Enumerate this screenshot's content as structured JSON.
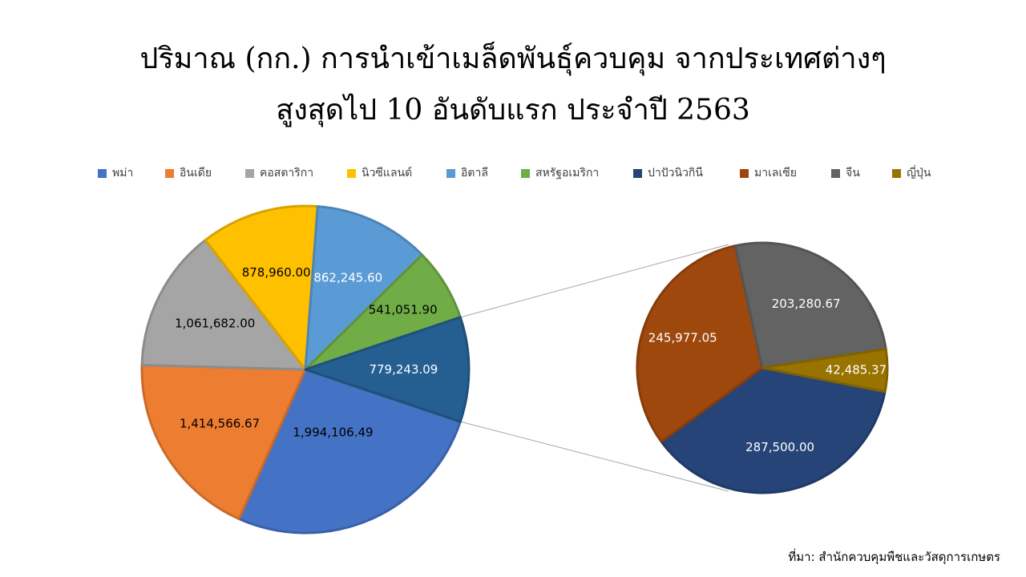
{
  "title_line1": "ปริมาณ (กก.) การนำเข้าเมล็ดพันธุ์ควบคุม จากประเทศต่างๆ",
  "title_line2": "สูงสุดไป 10 อันดับแรก ประจำปี 2563",
  "source": "ที่มา: สำนักควบคุมพืชและวัสดุการเกษตร",
  "chart_data": {
    "type": "pie",
    "subtype": "pie-of-pie",
    "title": "ปริมาณ (กก.) การนำเข้าเมล็ดพันธุ์ควบคุม จากประเทศต่างๆ สูงสุดไป 10 อันดับแรก ประจำปี 2563",
    "legend_position": "top",
    "categories": [
      "พม่า",
      "อินเดีย",
      "คอสตาริกา",
      "นิวซีแลนด์",
      "อิตาลี",
      "สหรัฐอเมริกา",
      "ปาปัวนิวกินี",
      "มาเลเซีย",
      "จีน",
      "ญี่ปุ่น"
    ],
    "values": [
      1994106.49,
      1414566.67,
      1061682.0,
      878960.0,
      862245.6,
      541051.9,
      287500.0,
      245977.05,
      203280.67,
      42485.37
    ],
    "labels": [
      "1,994,106.49",
      "1,414,566.67",
      "1,061,682.00",
      "878,960.00",
      "862,245.60",
      "541,051.90",
      "287,500.00",
      "245,977.05",
      "203,280.67",
      "42,485.37"
    ],
    "main_pie_other_label": "779,243.09",
    "secondary_pie_categories": [
      "ปาปัวนิวกินี",
      "มาเลเซีย",
      "จีน",
      "ญี่ปุ่น"
    ],
    "colors": [
      "#4472C4",
      "#ED7D31",
      "#A5A5A5",
      "#FFC000",
      "#5B9BD5",
      "#70AD47",
      "#264478",
      "#9E480E",
      "#636363",
      "#997300"
    ],
    "other_color": "#255E91",
    "label_colors": [
      "#000000",
      "#000000",
      "#000000",
      "#000000",
      "#ffffff",
      "#000000",
      "#ffffff",
      "#ffffff",
      "#ffffff",
      "#ffffff"
    ],
    "other_label_color": "#ffffff"
  }
}
